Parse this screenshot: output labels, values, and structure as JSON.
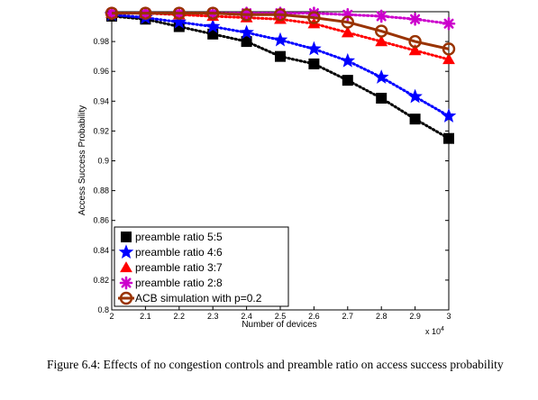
{
  "chart_data": {
    "type": "line",
    "xlabel": "Number of devices",
    "ylabel": "Access Success Probability",
    "x_multiplier_label": "x 10",
    "x_multiplier_exp": "4",
    "x": [
      2,
      2.1,
      2.2,
      2.3,
      2.4,
      2.5,
      2.6,
      2.7,
      2.8,
      2.9,
      3
    ],
    "xlim": [
      2,
      3
    ],
    "ylim": [
      0.8,
      1.0
    ],
    "xticks": [
      "2",
      "2.1",
      "2.2",
      "2.3",
      "2.4",
      "2.5",
      "2.6",
      "2.7",
      "2.8",
      "2.9",
      "3"
    ],
    "yticks": [
      "0.8",
      "0.82",
      "0.84",
      "0.86",
      "0.88",
      "0.9",
      "0.92",
      "0.94",
      "0.96",
      "0.98"
    ],
    "yticks_values": [
      0.8,
      0.82,
      0.84,
      0.86,
      0.88,
      0.9,
      0.92,
      0.94,
      0.96,
      0.98
    ],
    "legend_position": "bottom-left",
    "series": [
      {
        "name": "preamble ratio 5:5",
        "color": "#000000",
        "marker": "square",
        "dash": "dotted",
        "values": [
          0.997,
          0.995,
          0.99,
          0.985,
          0.98,
          0.97,
          0.965,
          0.954,
          0.942,
          0.928,
          0.915
        ]
      },
      {
        "name": "preamble ratio 4:6",
        "color": "#0000ff",
        "marker": "star",
        "dash": "dotted",
        "values": [
          0.998,
          0.996,
          0.993,
          0.99,
          0.986,
          0.981,
          0.975,
          0.967,
          0.956,
          0.943,
          0.93
        ]
      },
      {
        "name": "preamble ratio 3:7",
        "color": "#ff0000",
        "marker": "triangle",
        "dash": "dotted",
        "values": [
          0.999,
          0.999,
          0.998,
          0.997,
          0.996,
          0.995,
          0.992,
          0.986,
          0.98,
          0.974,
          0.968
        ]
      },
      {
        "name": "preamble ratio 2:8",
        "color": "#cc00cc",
        "marker": "asterisk",
        "dash": "dotted",
        "values": [
          0.999,
          0.999,
          0.999,
          0.999,
          0.999,
          0.999,
          0.999,
          0.998,
          0.997,
          0.995,
          0.992
        ]
      },
      {
        "name": "ACB simulation with p=0.2",
        "color": "#993300",
        "marker": "circle",
        "dash": "solid",
        "values": [
          0.999,
          0.999,
          0.999,
          0.999,
          0.998,
          0.998,
          0.996,
          0.993,
          0.987,
          0.98,
          0.975
        ]
      }
    ]
  },
  "caption": "Figure 6.4: Effects of no congestion controls and preamble ratio on access success probability"
}
